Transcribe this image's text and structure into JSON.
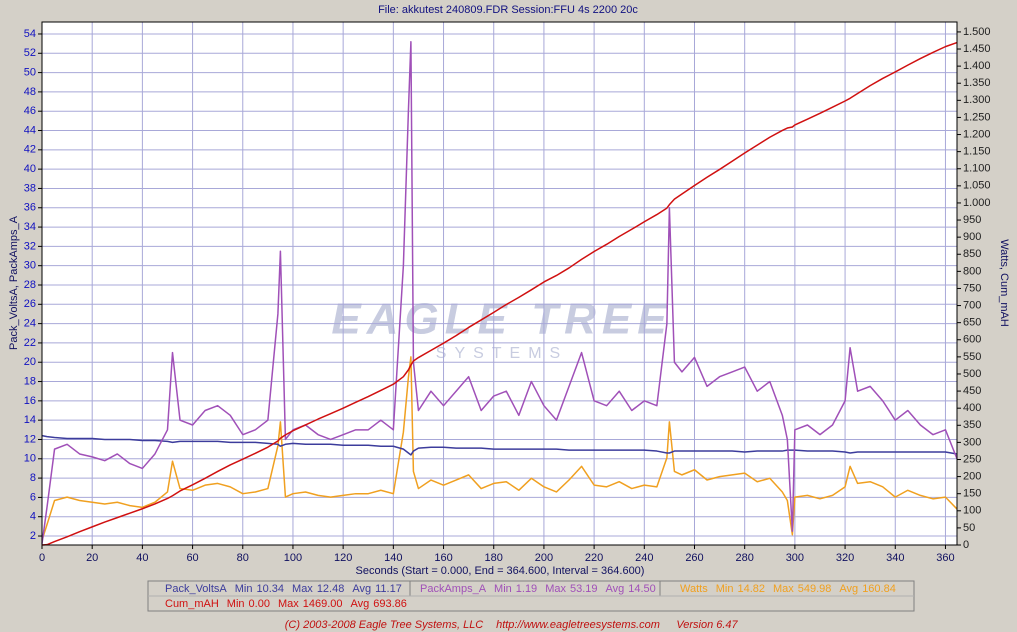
{
  "chart_data": {
    "type": "line",
    "title": "File: akkutest 240809.FDR   Session:FFU 4s 2200 20c",
    "xlabel": "Seconds (Start = 0.000, End = 364.600, Interval = 364.600)",
    "ylabel": "Pack_VoltsA, PackAmps_A",
    "y2label": "Watts, Cum_mAH",
    "watermark": [
      "EAGLE TREE",
      "SYSTEMS"
    ],
    "footer": [
      "(C) 2003-2008 Eagle Tree Systems, LLC",
      "http://www.eagletreesystems.com",
      "Version 6.47"
    ],
    "grid": true,
    "xlim": [
      0,
      364.6
    ],
    "xticks": [
      0,
      20,
      40,
      60,
      80,
      100,
      120,
      140,
      160,
      180,
      200,
      220,
      240,
      260,
      280,
      300,
      320,
      340,
      360
    ],
    "ylim": [
      1.07,
      55.24
    ],
    "yticks": [
      2,
      4,
      6,
      8,
      10,
      12,
      14,
      16,
      18,
      20,
      22,
      24,
      26,
      28,
      30,
      32,
      34,
      36,
      38,
      40,
      42,
      44,
      46,
      48,
      50,
      52,
      54
    ],
    "y2lim": [
      0,
      1529
    ],
    "y2ticks": [
      0,
      50,
      100,
      150,
      200,
      250,
      300,
      350,
      400,
      450,
      500,
      550,
      600,
      650,
      700,
      750,
      800,
      850,
      900,
      950,
      {
        "value": 1000,
        "label": "1.000"
      },
      {
        "value": 1050,
        "label": "1.050"
      },
      {
        "value": 1100,
        "label": "1.100"
      },
      {
        "value": 1150,
        "label": "1.150"
      },
      {
        "value": 1200,
        "label": "1.200"
      },
      {
        "value": 1250,
        "label": "1.250"
      },
      {
        "value": 1300,
        "label": "1.300"
      },
      {
        "value": 1350,
        "label": "1.350"
      },
      {
        "value": 1400,
        "label": "1.400"
      },
      {
        "value": 1450,
        "label": "1.450"
      },
      {
        "value": 1500,
        "label": "1.500"
      }
    ],
    "stat_labels": [
      "Min",
      "Max",
      "Avg"
    ],
    "x": [
      0,
      2,
      5,
      10,
      15,
      20,
      25,
      30,
      35,
      40,
      45,
      50,
      52,
      55,
      60,
      65,
      70,
      75,
      80,
      85,
      90,
      94,
      95,
      97,
      100,
      105,
      110,
      115,
      120,
      125,
      130,
      135,
      140,
      144,
      146,
      147,
      148,
      150,
      155,
      160,
      165,
      170,
      175,
      180,
      185,
      190,
      195,
      200,
      205,
      210,
      215,
      220,
      225,
      230,
      235,
      240,
      245,
      249,
      250,
      252,
      255,
      260,
      265,
      270,
      275,
      280,
      285,
      290,
      295,
      297,
      299,
      300,
      305,
      310,
      315,
      320,
      322,
      325,
      330,
      335,
      340,
      345,
      350,
      355,
      360,
      364.6
    ],
    "series": [
      {
        "name": "Pack_VoltsA",
        "color": "#3c3c9c",
        "stats": [
          "10.34",
          "12.48",
          "11.17"
        ],
        "values": [
          12.4,
          12.3,
          12.2,
          12.1,
          12.1,
          12.1,
          12.0,
          12.0,
          12.0,
          11.9,
          11.9,
          11.8,
          11.7,
          11.8,
          11.8,
          11.8,
          11.8,
          11.7,
          11.7,
          11.7,
          11.6,
          11.5,
          11.3,
          11.5,
          11.6,
          11.5,
          11.5,
          11.5,
          11.4,
          11.4,
          11.4,
          11.3,
          11.3,
          11.0,
          10.6,
          10.4,
          10.8,
          11.1,
          11.2,
          11.2,
          11.1,
          11.1,
          11.1,
          11.0,
          11.0,
          11.0,
          11.0,
          11.0,
          11.0,
          10.9,
          10.9,
          10.9,
          10.9,
          10.9,
          10.9,
          10.9,
          10.8,
          10.6,
          10.6,
          10.8,
          10.8,
          10.8,
          10.8,
          10.8,
          10.8,
          10.7,
          10.8,
          10.8,
          10.8,
          10.9,
          10.9,
          10.9,
          10.8,
          10.8,
          10.8,
          10.7,
          10.6,
          10.7,
          10.7,
          10.7,
          10.7,
          10.7,
          10.7,
          10.7,
          10.7,
          10.5
        ]
      },
      {
        "name": "PackAmps_A",
        "color": "#a050b8",
        "stats": [
          "1.19",
          "53.19",
          "14.50"
        ],
        "values": [
          1.2,
          5,
          11,
          11.5,
          10.5,
          10.2,
          9.8,
          10.5,
          9.5,
          9,
          10.5,
          13,
          21,
          14,
          13.5,
          15,
          15.5,
          14.5,
          12.5,
          13,
          14,
          25,
          31.5,
          12,
          13,
          13.5,
          12.5,
          12,
          12.5,
          13,
          13,
          14,
          13,
          30,
          46,
          53.2,
          20,
          15,
          17,
          15.5,
          17,
          18.5,
          15,
          16.5,
          17,
          14.5,
          18,
          15.5,
          14,
          17.5,
          21,
          16,
          15.5,
          17,
          15,
          16,
          15.5,
          24,
          36,
          20,
          19,
          20.5,
          17.5,
          18.5,
          19,
          19.5,
          17,
          18,
          14.5,
          12,
          2.5,
          13,
          13.5,
          12.5,
          13.5,
          16,
          21.5,
          17,
          17.5,
          16,
          14,
          15,
          13.5,
          12.5,
          13,
          10
        ]
      },
      {
        "name": "Watts",
        "color": "#f0a020",
        "axis": "y2",
        "stats": [
          "14.82",
          "549.98",
          "160.84"
        ],
        "values": [
          14,
          60,
          130,
          140,
          130,
          125,
          120,
          125,
          115,
          110,
          125,
          155,
          245,
          165,
          160,
          175,
          180,
          170,
          150,
          155,
          165,
          290,
          360,
          140,
          150,
          155,
          145,
          140,
          145,
          150,
          150,
          160,
          150,
          330,
          490,
          550,
          215,
          165,
          190,
          175,
          190,
          205,
          165,
          180,
          185,
          160,
          195,
          170,
          155,
          190,
          230,
          175,
          170,
          185,
          165,
          175,
          170,
          255,
          360,
          215,
          205,
          220,
          190,
          200,
          205,
          210,
          185,
          195,
          155,
          130,
          30,
          140,
          145,
          135,
          145,
          170,
          230,
          180,
          185,
          170,
          140,
          160,
          145,
          135,
          140,
          105
        ]
      },
      {
        "name": "Cum_mAH",
        "color": "#d01010",
        "axis": "y2",
        "stats": [
          "0.00",
          "1469.00",
          "693.86"
        ],
        "values": [
          0,
          1,
          10,
          24,
          39,
          53,
          67,
          80,
          93,
          106,
          120,
          136,
          144,
          158,
          176,
          195,
          215,
          234,
          251,
          268,
          286,
          304,
          312,
          322,
          334,
          351,
          368,
          384,
          400,
          417,
          434,
          452,
          470,
          492,
          512,
          526,
          538,
          548,
          569,
          590,
          612,
          636,
          658,
          680,
          703,
          724,
          746,
          769,
          788,
          810,
          835,
          858,
          879,
          902,
          923,
          945,
          966,
          985,
          995,
          1011,
          1026,
          1051,
          1075,
          1098,
          1122,
          1146,
          1169,
          1192,
          1212,
          1219,
          1222,
          1228,
          1245,
          1262,
          1280,
          1298,
          1306,
          1320,
          1343,
          1364,
          1383,
          1403,
          1422,
          1440,
          1457,
          1469
        ]
      }
    ]
  }
}
